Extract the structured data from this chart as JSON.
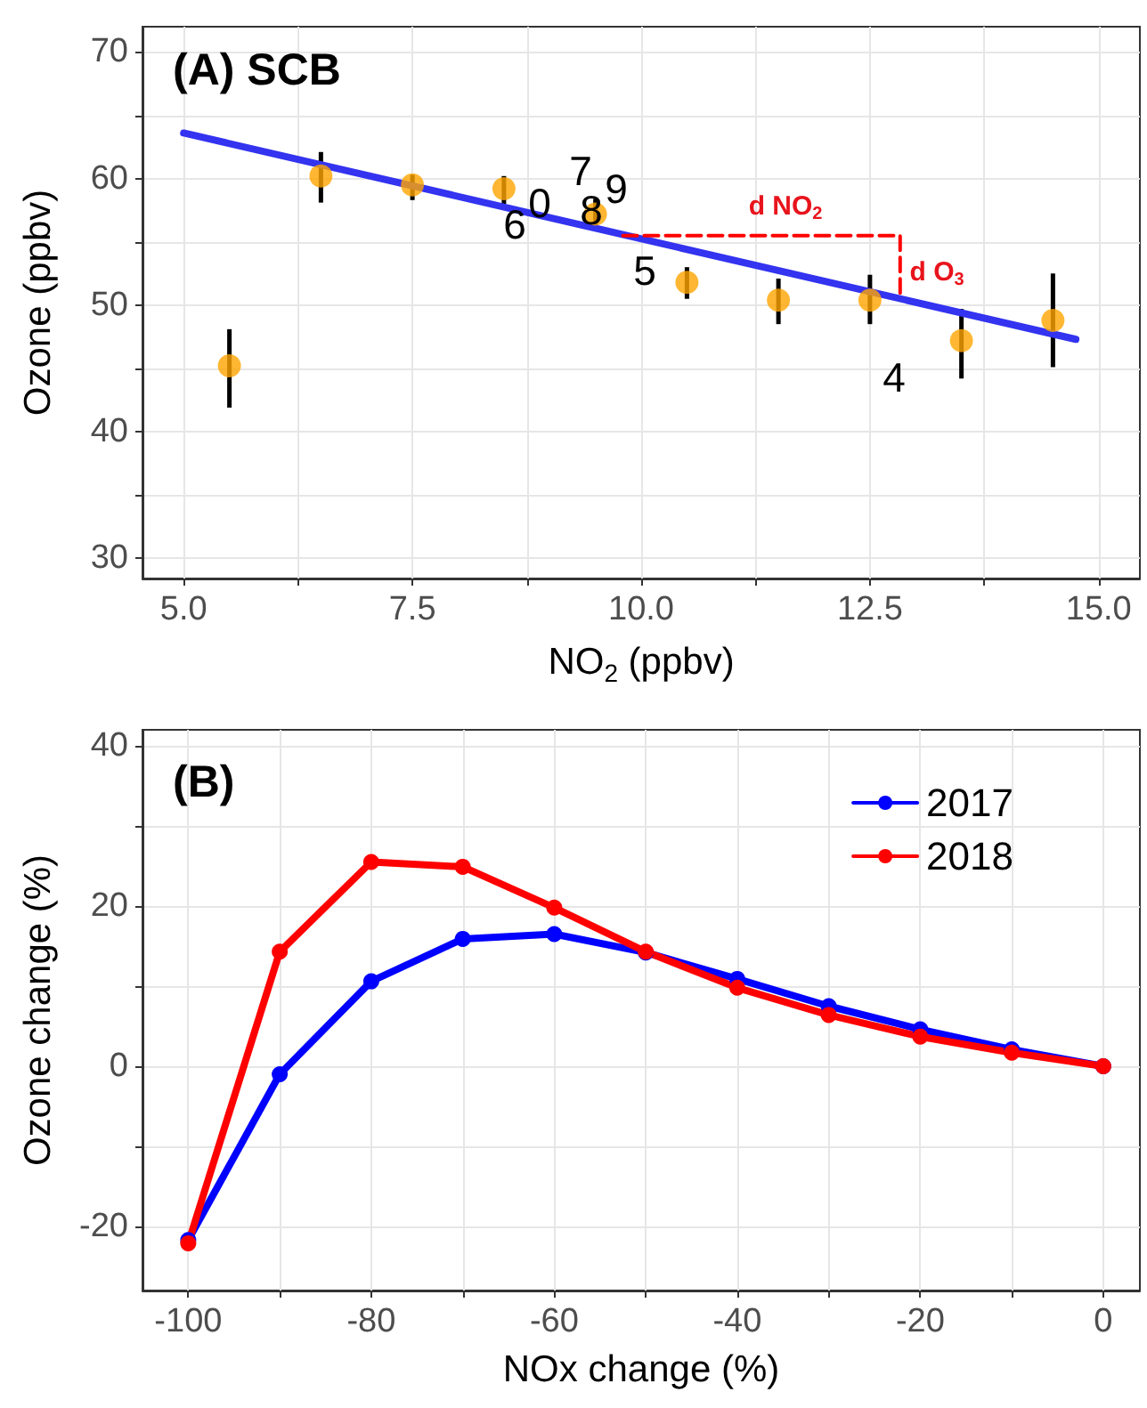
{
  "chart_data": [
    {
      "type": "scatter",
      "title": "(A) SCB",
      "xlabel": "NO$_{2}$ (ppbv)",
      "ylabel": "Ozone (ppbv)",
      "xlim": [
        4.55,
        15.45
      ],
      "ylim": [
        28.4,
        72
      ],
      "xticks": [
        {
          "value": 5,
          "label": "5.0"
        },
        {
          "value": 6.25,
          "label": null
        },
        {
          "value": 7.5,
          "label": "7.5"
        },
        {
          "value": 8.75,
          "label": null
        },
        {
          "value": 10,
          "label": "10.0"
        },
        {
          "value": 11.25,
          "label": null
        },
        {
          "value": 12.5,
          "label": "12.5"
        },
        {
          "value": 13.75,
          "label": null
        },
        {
          "value": 15,
          "label": "15.0"
        }
      ],
      "yticks": [
        30,
        {
          "value": 35,
          "label": null
        },
        40,
        {
          "value": 45,
          "label": null
        },
        50,
        {
          "value": 55,
          "label": null
        },
        60,
        {
          "value": 65,
          "label": null
        },
        70
      ],
      "grid": true,
      "series": [
        {
          "color": "#ffa500",
          "marker": "circle",
          "x": [
            5.5,
            6.5,
            7.5,
            8.5,
            9.5,
            10.5,
            11.5,
            12.5,
            13.5,
            14.5
          ],
          "values": [
            45.2,
            60.2,
            59.5,
            59.2,
            57.2,
            51.8,
            50.4,
            50.4,
            47.2,
            48.8
          ],
          "errors": [
            [
              41.9,
              48.1
            ],
            [
              58.1,
              62.1
            ],
            [
              58.3,
              60.3
            ],
            [
              58.0,
              60.2
            ],
            [
              56.1,
              58.4
            ],
            [
              50.5,
              53.0
            ],
            [
              48.5,
              52.1
            ],
            [
              48.5,
              52.4
            ],
            [
              44.2,
              49.7
            ],
            [
              45.1,
              52.5
            ]
          ]
        },
        {
          "type": "line",
          "color": "#3333f0",
          "marker": "none",
          "x": [
            5.0,
            14.75
          ],
          "values": [
            63.6,
            47.3
          ]
        },
        {
          "type": "line",
          "color": "#ff0000",
          "marker": "none",
          "line_style": "dashed",
          "x": [
            9.8,
            12.83,
            12.83
          ],
          "values": [
            55.5,
            55.5,
            50.5
          ]
        }
      ],
      "annotations": [
        "6",
        "0",
        "7",
        "8",
        "9",
        "5",
        "4",
        "d NO$_{2}$",
        "d O$_{3}$"
      ]
    },
    {
      "type": "line",
      "title": "(B)",
      "xlabel": "NOx change (%)",
      "ylabel": "Ozone change (%)",
      "xlim": [
        -105,
        4
      ],
      "ylim": [
        -28,
        42
      ],
      "xticks": [
        -100,
        {
          "value": -90,
          "label": null
        },
        -80,
        {
          "value": -70,
          "label": null
        },
        -60,
        {
          "value": -50,
          "label": null
        },
        -40,
        {
          "value": -30,
          "label": null
        },
        -20,
        {
          "value": -10,
          "label": null
        },
        0
      ],
      "yticks": [
        -20,
        {
          "value": -10,
          "label": null
        },
        0,
        {
          "value": 10,
          "label": null
        },
        20,
        {
          "value": 30,
          "label": null
        },
        40
      ],
      "grid": true,
      "legend": "top right",
      "marker": "circle",
      "x": [
        -100,
        -90,
        -80,
        -70,
        -60,
        -50,
        -40,
        -30,
        -20,
        -10,
        0
      ],
      "series": [
        {
          "name": "2017",
          "color": "#0000ff",
          "values": [
            -21.7,
            -1.0,
            10.6,
            15.9,
            16.5,
            14.2,
            10.9,
            7.5,
            4.6,
            2.1,
            0
          ]
        },
        {
          "name": "2018",
          "color": "#ff0000",
          "values": [
            -22.1,
            14.3,
            25.5,
            24.9,
            19.8,
            14.3,
            9.8,
            6.4,
            3.7,
            1.7,
            0
          ]
        }
      ]
    }
  ]
}
